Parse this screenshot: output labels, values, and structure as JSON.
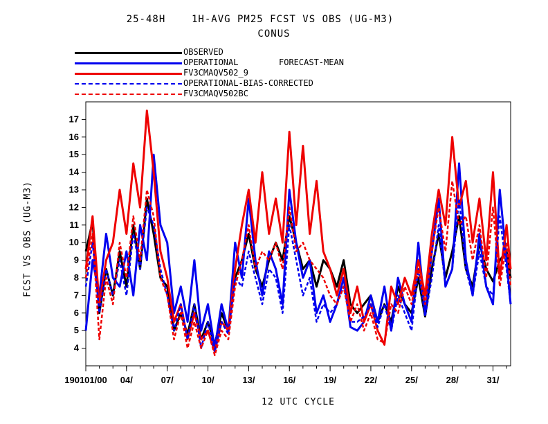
{
  "chart_data": {
    "type": "line",
    "title": "25-48H    1H-AVG PM25 FCST VS OBS (UG-M3)",
    "subtitle": "CONUS",
    "xlabel": "12 UTC CYCLE",
    "ylabel": "FCST VS OBS (UG-M3)",
    "ylim": [
      3,
      18
    ],
    "yticks": [
      4,
      5,
      6,
      7,
      8,
      9,
      10,
      11,
      12,
      13,
      14,
      15,
      16,
      17
    ],
    "xlim": [
      0,
      31.3
    ],
    "xticks": [
      {
        "day": 0,
        "label": "190101/00"
      },
      {
        "day": 3,
        "label": "04/"
      },
      {
        "day": 6,
        "label": "07/"
      },
      {
        "day": 9,
        "label": "10/"
      },
      {
        "day": 12,
        "label": "13/"
      },
      {
        "day": 15,
        "label": "16/"
      },
      {
        "day": 18,
        "label": "19/"
      },
      {
        "day": 21,
        "label": "22/"
      },
      {
        "day": 24,
        "label": "25/"
      },
      {
        "day": 27,
        "label": "28/"
      },
      {
        "day": 30,
        "label": "31/"
      }
    ],
    "legend_extra": "FORECAST-MEAN",
    "x": [
      0,
      0.5,
      1,
      1.5,
      2,
      2.5,
      3,
      3.5,
      4,
      4.5,
      5,
      5.5,
      6,
      6.5,
      7,
      7.5,
      8,
      8.5,
      9,
      9.5,
      10,
      10.5,
      11,
      11.5,
      12,
      12.5,
      13,
      13.5,
      14,
      14.5,
      15,
      15.5,
      16,
      16.5,
      17,
      17.5,
      18,
      18.5,
      19,
      19.5,
      20,
      20.5,
      21,
      21.5,
      22,
      22.5,
      23,
      23.5,
      24,
      24.5,
      25,
      25.5,
      26,
      26.5,
      27,
      27.5,
      28,
      28.5,
      29,
      29.5,
      30,
      30.5,
      31,
      31.3
    ],
    "series": [
      {
        "name": "OBSERVED",
        "color": "#000000",
        "style": "solid",
        "values": [
          9.5,
          11.2,
          6.0,
          8.5,
          7.0,
          9.5,
          7.5,
          11.0,
          8.5,
          12.5,
          10.5,
          8.0,
          7.5,
          5.0,
          6.0,
          4.8,
          6.5,
          4.5,
          5.5,
          4.2,
          6.0,
          5.0,
          8.0,
          9.0,
          10.5,
          8.5,
          7.5,
          9.0,
          10.0,
          9.0,
          11.5,
          10.0,
          8.5,
          9.0,
          7.5,
          9.0,
          8.5,
          7.5,
          9.0,
          6.5,
          6.0,
          6.5,
          7.0,
          5.5,
          6.5,
          5.5,
          7.5,
          6.5,
          6.0,
          8.0,
          5.8,
          8.5,
          10.5,
          8.0,
          9.5,
          11.5,
          8.5,
          7.5,
          10.0,
          8.5,
          7.8,
          9.0,
          9.5,
          8.0
        ]
      },
      {
        "name": "OPERATIONAL",
        "color": "#0000ee",
        "style": "solid",
        "values": [
          5.0,
          9.0,
          7.0,
          10.5,
          8.0,
          7.5,
          9.5,
          7.0,
          11.0,
          9.0,
          15.0,
          11.0,
          10.0,
          6.0,
          7.5,
          5.5,
          9.0,
          5.0,
          6.5,
          4.0,
          6.5,
          5.0,
          10.0,
          8.0,
          12.5,
          9.0,
          7.0,
          9.5,
          8.5,
          6.5,
          13.0,
          10.0,
          8.0,
          9.0,
          6.0,
          7.0,
          5.5,
          6.5,
          8.0,
          5.2,
          5.0,
          5.5,
          7.0,
          5.5,
          7.5,
          5.0,
          8.0,
          6.5,
          5.5,
          10.0,
          6.0,
          9.5,
          12.5,
          7.5,
          8.5,
          14.5,
          9.0,
          7.0,
          10.5,
          7.5,
          6.5,
          13.0,
          9.0,
          6.5
        ]
      },
      {
        "name": "FV3CMAQV502_9",
        "color": "#ee0000",
        "style": "solid",
        "values": [
          8.5,
          11.5,
          6.5,
          9.0,
          10.0,
          13.0,
          10.5,
          14.5,
          12.0,
          17.5,
          14.0,
          9.5,
          8.0,
          5.5,
          6.5,
          4.5,
          6.0,
          4.5,
          5.0,
          3.8,
          5.5,
          5.0,
          8.5,
          11.0,
          13.0,
          10.0,
          14.0,
          10.5,
          12.5,
          10.0,
          16.3,
          11.0,
          15.5,
          10.5,
          13.5,
          9.5,
          8.5,
          7.0,
          8.5,
          6.0,
          7.5,
          5.5,
          6.5,
          5.0,
          4.2,
          7.5,
          6.5,
          8.0,
          7.0,
          9.0,
          7.0,
          10.5,
          13.0,
          11.0,
          16.0,
          12.0,
          13.5,
          10.0,
          12.5,
          9.0,
          14.0,
          8.0,
          11.0,
          8.5
        ]
      },
      {
        "name": "OPERATIONAL-BIAS-CORRECTED",
        "color": "#0000ee",
        "style": "dashed",
        "values": [
          7.5,
          10.0,
          6.0,
          8.5,
          7.0,
          9.0,
          7.0,
          10.5,
          8.5,
          12.0,
          11.0,
          8.5,
          7.0,
          5.0,
          6.5,
          4.5,
          6.5,
          4.0,
          5.5,
          3.8,
          5.5,
          4.8,
          8.0,
          7.5,
          9.5,
          8.0,
          6.5,
          8.5,
          8.0,
          6.0,
          11.0,
          9.0,
          7.0,
          8.0,
          5.5,
          6.5,
          6.0,
          6.5,
          7.5,
          5.5,
          5.5,
          5.8,
          6.5,
          5.2,
          6.5,
          5.0,
          7.0,
          6.0,
          5.0,
          8.5,
          5.8,
          8.0,
          11.0,
          7.5,
          8.5,
          12.5,
          8.5,
          7.0,
          9.5,
          7.5,
          7.0,
          11.5,
          8.5,
          6.5
        ]
      },
      {
        "name": "FV3CMAQV502BC",
        "color": "#ee0000",
        "style": "dashed",
        "values": [
          8.0,
          10.5,
          4.5,
          8.0,
          6.5,
          10.0,
          8.0,
          11.5,
          9.0,
          13.0,
          11.5,
          8.0,
          7.0,
          4.5,
          6.0,
          4.0,
          5.5,
          4.0,
          5.0,
          3.6,
          5.0,
          4.5,
          7.5,
          9.0,
          11.0,
          8.5,
          9.5,
          9.0,
          10.0,
          8.5,
          12.0,
          9.5,
          10.0,
          9.0,
          8.5,
          8.0,
          7.0,
          6.5,
          7.5,
          5.5,
          6.5,
          5.0,
          6.0,
          4.5,
          4.3,
          6.5,
          6.0,
          7.5,
          6.5,
          8.5,
          6.5,
          9.5,
          12.0,
          9.5,
          13.5,
          11.0,
          11.5,
          9.0,
          11.0,
          8.0,
          12.0,
          7.5,
          10.0,
          7.5
        ]
      }
    ]
  }
}
